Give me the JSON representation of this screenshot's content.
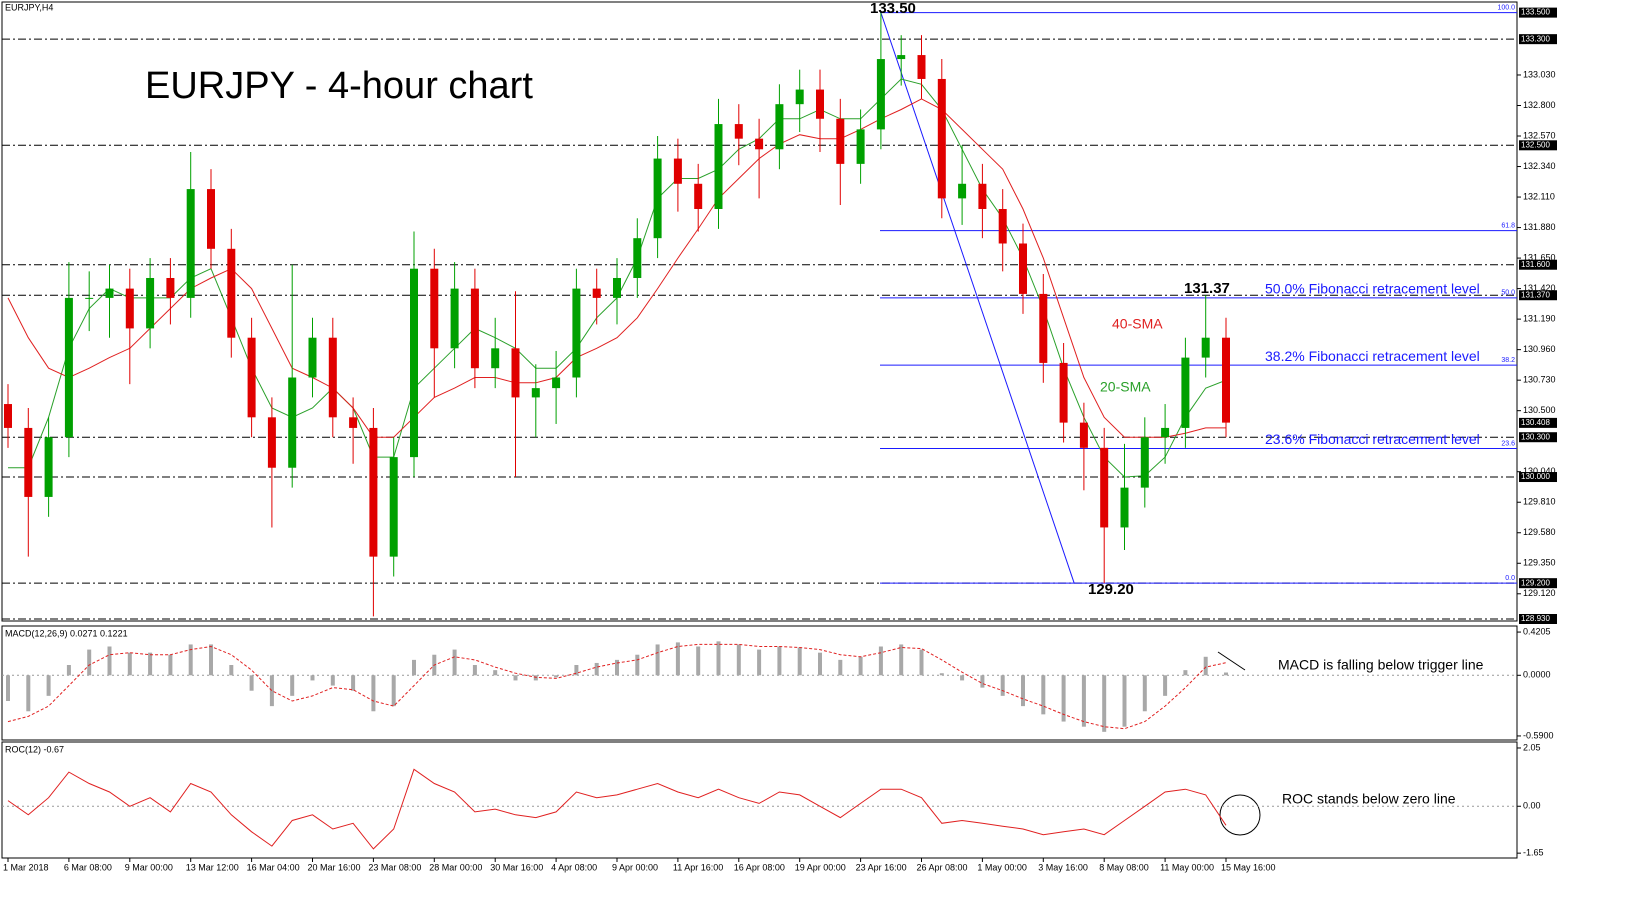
{
  "symbol": "EURJPY,H4",
  "chart_data": [
    {
      "type": "candlestick",
      "title": "EURJPY - 4-hour chart",
      "categories": [
        "1 Mar 2018",
        null,
        null,
        "6 Mar 08:00",
        null,
        null,
        "9 Mar 00:00",
        null,
        null,
        "13 Mar 12:00",
        null,
        null,
        "16 Mar 04:00",
        null,
        null,
        "20 Mar 16:00",
        null,
        null,
        "23 Mar 08:00",
        null,
        null,
        "28 Mar 00:00",
        null,
        null,
        "30 Mar 16:00",
        null,
        null,
        "4 Apr 08:00",
        null,
        null,
        "9 Apr 00:00",
        null,
        null,
        "11 Apr 16:00",
        null,
        null,
        "16 Apr 08:00",
        null,
        null,
        "19 Apr 00:00",
        null,
        null,
        "23 Apr 16:00",
        null,
        null,
        "26 Apr 08:00",
        null,
        null,
        "1 May 00:00",
        null,
        null,
        "3 May 16:00",
        null,
        null,
        "8 May 08:00",
        null,
        null,
        "11 May 00:00",
        null,
        null,
        "15 May 16:00"
      ],
      "open": [
        130.55,
        130.37,
        129.85,
        130.3,
        131.35,
        131.35,
        131.42,
        131.12,
        131.5,
        131.35,
        132.17,
        131.72,
        131.05,
        130.45,
        130.07,
        130.75,
        131.05,
        130.45,
        130.37,
        129.4,
        130.15,
        131.57,
        130.97,
        131.42,
        130.82,
        130.97,
        130.6,
        130.67,
        130.75,
        131.42,
        131.35,
        131.5,
        131.8,
        132.4,
        132.21,
        132.02,
        132.66,
        132.55,
        132.47,
        132.81,
        132.92,
        132.7,
        132.36,
        132.62,
        133.15,
        133.18,
        133.0,
        132.1,
        132.21,
        132.02,
        131.76,
        131.38,
        130.86,
        130.41,
        130.22,
        129.62,
        129.92,
        130.3,
        130.37,
        130.9,
        131.05
      ],
      "high": [
        130.7,
        130.52,
        130.45,
        131.62,
        131.55,
        131.6,
        131.57,
        131.65,
        131.65,
        132.45,
        132.32,
        131.87,
        131.2,
        130.6,
        131.6,
        131.2,
        131.2,
        130.6,
        130.52,
        130.3,
        131.85,
        131.72,
        131.62,
        131.57,
        131.2,
        131.4,
        130.85,
        130.95,
        131.57,
        131.57,
        131.65,
        131.95,
        132.57,
        132.55,
        132.36,
        132.85,
        132.81,
        132.7,
        132.96,
        133.07,
        133.07,
        132.85,
        132.77,
        133.5,
        133.33,
        133.33,
        133.15,
        132.5,
        132.36,
        132.17,
        131.91,
        131.53,
        131.01,
        130.56,
        130.37,
        130.25,
        130.45,
        130.55,
        131.05,
        131.37,
        131.2
      ],
      "low": [
        130.22,
        129.4,
        129.7,
        130.15,
        131.1,
        131.05,
        130.7,
        130.97,
        131.15,
        131.2,
        131.57,
        130.9,
        130.3,
        129.62,
        129.92,
        130.6,
        130.3,
        130.1,
        128.95,
        129.25,
        130.0,
        130.6,
        130.82,
        130.67,
        130.67,
        130.0,
        130.3,
        130.4,
        130.6,
        131.15,
        131.15,
        131.35,
        131.65,
        132.0,
        131.85,
        131.87,
        132.35,
        132.1,
        132.32,
        132.6,
        132.45,
        132.05,
        132.21,
        132.47,
        132.95,
        132.85,
        131.95,
        131.9,
        131.8,
        131.55,
        131.23,
        130.71,
        130.26,
        129.9,
        129.2,
        129.45,
        129.77,
        130.1,
        130.22,
        130.75,
        130.3
      ],
      "close": [
        130.37,
        129.85,
        130.3,
        131.35,
        131.35,
        131.42,
        131.12,
        131.5,
        131.35,
        132.17,
        131.72,
        131.05,
        130.45,
        130.07,
        130.75,
        131.05,
        130.45,
        130.37,
        129.4,
        130.15,
        131.57,
        130.97,
        131.42,
        130.82,
        130.97,
        130.6,
        130.67,
        130.75,
        131.42,
        131.35,
        131.5,
        131.8,
        132.4,
        132.21,
        132.02,
        132.66,
        132.55,
        132.47,
        132.81,
        132.92,
        132.7,
        132.36,
        132.62,
        133.15,
        133.18,
        133.0,
        132.1,
        132.21,
        132.02,
        131.76,
        131.38,
        130.86,
        130.41,
        130.22,
        129.62,
        129.92,
        130.3,
        130.37,
        130.9,
        131.05,
        130.41
      ],
      "up_color": "#00a000",
      "down_color": "#e00000",
      "series": [
        {
          "name": "20-SMA",
          "color": "#2aa02a",
          "values": [
            130.07,
            130.07,
            130.45,
            130.97,
            131.27,
            131.42,
            131.35,
            131.35,
            131.35,
            131.5,
            131.57,
            131.2,
            130.82,
            130.52,
            130.45,
            130.52,
            130.67,
            130.52,
            130.15,
            130.15,
            130.67,
            130.82,
            130.97,
            131.12,
            131.05,
            130.97,
            130.82,
            130.82,
            130.97,
            131.2,
            131.35,
            131.65,
            132.1,
            132.25,
            132.25,
            132.32,
            132.47,
            132.55,
            132.7,
            132.7,
            132.77,
            132.7,
            132.7,
            132.85,
            133.0,
            132.96,
            132.77,
            132.47,
            132.17,
            131.95,
            131.65,
            131.27,
            130.82,
            130.45,
            130.15,
            130.0,
            130.01,
            130.15,
            130.45,
            130.67,
            130.73
          ]
        },
        {
          "name": "40-SMA",
          "color": "#e02020",
          "values": [
            131.35,
            131.05,
            130.82,
            130.75,
            130.82,
            130.9,
            130.97,
            131.12,
            131.27,
            131.42,
            131.5,
            131.57,
            131.42,
            131.12,
            130.82,
            130.75,
            130.67,
            130.52,
            130.3,
            130.3,
            130.45,
            130.6,
            130.67,
            130.75,
            130.75,
            130.71,
            130.71,
            130.75,
            130.9,
            130.97,
            131.05,
            131.2,
            131.42,
            131.65,
            131.87,
            132.1,
            132.25,
            132.4,
            132.51,
            132.58,
            132.55,
            132.55,
            132.62,
            132.7,
            132.77,
            132.85,
            132.77,
            132.62,
            132.47,
            132.32,
            132.02,
            131.65,
            131.2,
            130.75,
            130.45,
            130.3,
            130.3,
            130.3,
            130.33,
            130.37,
            130.37
          ]
        }
      ],
      "ylim": [
        128.93,
        133.58
      ],
      "yticks": [
        {
          "value": 133.03,
          "label": "133.030"
        },
        {
          "value": 132.8,
          "label": "132.800"
        },
        {
          "value": 132.57,
          "label": "132.570"
        },
        {
          "value": 132.34,
          "label": "132.340"
        },
        {
          "value": 132.11,
          "label": "132.110"
        },
        {
          "value": 131.88,
          "label": "131.880"
        },
        {
          "value": 131.65,
          "label": "131.650"
        },
        {
          "value": 131.42,
          "label": "131.420"
        },
        {
          "value": 131.19,
          "label": "131.190"
        },
        {
          "value": 130.96,
          "label": "130.960"
        },
        {
          "value": 130.73,
          "label": "130.730"
        },
        {
          "value": 130.5,
          "label": "130.500"
        },
        {
          "value": 130.04,
          "label": "130.040"
        },
        {
          "value": 129.81,
          "label": "129.810"
        },
        {
          "value": 129.58,
          "label": "129.580"
        },
        {
          "value": 129.35,
          "label": "129.350"
        },
        {
          "value": 129.12,
          "label": "129.120"
        }
      ],
      "levels": [
        {
          "value": 133.5,
          "label": "133.500",
          "line": false
        },
        {
          "value": 133.3,
          "label": "133.300",
          "line": true
        },
        {
          "value": 132.5,
          "label": "132.500",
          "line": true
        },
        {
          "value": 131.6,
          "label": "131.600",
          "line": true
        },
        {
          "value": 131.37,
          "label": "131.370",
          "line": true
        },
        {
          "value": 130.3,
          "label": "130.300",
          "line": true
        },
        {
          "value": 130,
          "label": "130.000",
          "line": true
        },
        {
          "value": 129.2,
          "label": "129.200",
          "line": true
        },
        {
          "value": 128.93,
          "label": "128.930",
          "line": true
        }
      ],
      "last_price": {
        "value": 130.408,
        "label": "130.408"
      },
      "fibonacci": [
        {
          "value": 133.5,
          "label": "100.0"
        },
        {
          "value": 131.857,
          "label": "61.8"
        },
        {
          "value": 131.35,
          "label": "50.0",
          "text": "50.0% Fibonacci retracement level"
        },
        {
          "value": 130.843,
          "label": "38.2",
          "text": "38.2% Fibonacci retracement level"
        },
        {
          "value": 130.215,
          "label": "23.6",
          "text": "23.6% Fibonacci retracement level"
        },
        {
          "value": 129.2,
          "label": "0.0"
        }
      ],
      "fib_color": "#1a1aff",
      "annotations": [
        "133.50",
        "131.37",
        "129.20"
      ]
    },
    {
      "type": "macd",
      "title": "MACD(12,26,9) 0.0271 0.1221",
      "values": [
        -0.25,
        -0.35,
        -0.2,
        0.1,
        0.25,
        0.28,
        0.22,
        0.22,
        0.2,
        0.3,
        0.3,
        0.1,
        -0.15,
        -0.3,
        -0.2,
        -0.05,
        -0.1,
        -0.15,
        -0.35,
        -0.3,
        0.15,
        0.2,
        0.25,
        0.1,
        0.05,
        -0.05,
        -0.05,
        -0.02,
        0.1,
        0.12,
        0.15,
        0.2,
        0.3,
        0.32,
        0.28,
        0.33,
        0.3,
        0.25,
        0.28,
        0.27,
        0.22,
        0.15,
        0.18,
        0.28,
        0.3,
        0.25,
        0.02,
        -0.05,
        -0.12,
        -0.2,
        -0.3,
        -0.38,
        -0.45,
        -0.5,
        -0.55,
        -0.5,
        -0.35,
        -0.2,
        0.05,
        0.18,
        0.0271
      ],
      "signal": [
        -0.45,
        -0.4,
        -0.3,
        -0.1,
        0.1,
        0.2,
        0.22,
        0.2,
        0.2,
        0.25,
        0.28,
        0.2,
        0.05,
        -0.15,
        -0.25,
        -0.2,
        -0.12,
        -0.14,
        -0.25,
        -0.3,
        -0.1,
        0.1,
        0.18,
        0.15,
        0.08,
        0.02,
        -0.02,
        -0.03,
        0.02,
        0.08,
        0.12,
        0.15,
        0.22,
        0.28,
        0.3,
        0.3,
        0.3,
        0.28,
        0.28,
        0.27,
        0.25,
        0.2,
        0.18,
        0.22,
        0.27,
        0.26,
        0.15,
        0.03,
        -0.08,
        -0.15,
        -0.23,
        -0.3,
        -0.38,
        -0.45,
        -0.5,
        -0.52,
        -0.45,
        -0.3,
        -0.12,
        0.08,
        0.1221
      ],
      "color": "#a8a8a8",
      "signal_color": "#e02020",
      "ylim": [
        -0.61,
        0.46
      ],
      "yticks": [
        {
          "value": 0.4205,
          "label": "0.4205"
        },
        {
          "value": 0,
          "label": "0.0000"
        },
        {
          "value": -0.59,
          "label": "-0.5900"
        }
      ],
      "annotation": "MACD is falling below trigger line"
    },
    {
      "type": "roc",
      "title": "ROC(12) -0.67",
      "values": [
        0.2,
        -0.3,
        0.3,
        1.2,
        0.8,
        0.5,
        0.0,
        0.3,
        -0.2,
        0.8,
        0.5,
        -0.3,
        -0.9,
        -1.4,
        -0.5,
        -0.3,
        -0.8,
        -0.6,
        -1.5,
        -0.8,
        1.3,
        0.8,
        0.5,
        -0.2,
        -0.1,
        -0.3,
        -0.4,
        -0.2,
        0.5,
        0.3,
        0.4,
        0.6,
        0.8,
        0.5,
        0.3,
        0.6,
        0.3,
        0.1,
        0.5,
        0.4,
        0.0,
        -0.4,
        0.1,
        0.6,
        0.6,
        0.3,
        -0.6,
        -0.5,
        -0.6,
        -0.7,
        -0.8,
        -1.0,
        -0.9,
        -0.8,
        -1.0,
        -0.5,
        0.0,
        0.5,
        0.6,
        0.4,
        -0.67
      ],
      "color": "#e02020",
      "ylim": [
        -1.75,
        2.19
      ],
      "yticks": [
        {
          "value": 2.05,
          "label": "2.05"
        },
        {
          "value": 0,
          "label": "0.00"
        },
        {
          "value": -1.65,
          "label": "-1.65"
        }
      ],
      "zero_line": true,
      "annotation": "ROC stands below zero line"
    }
  ]
}
